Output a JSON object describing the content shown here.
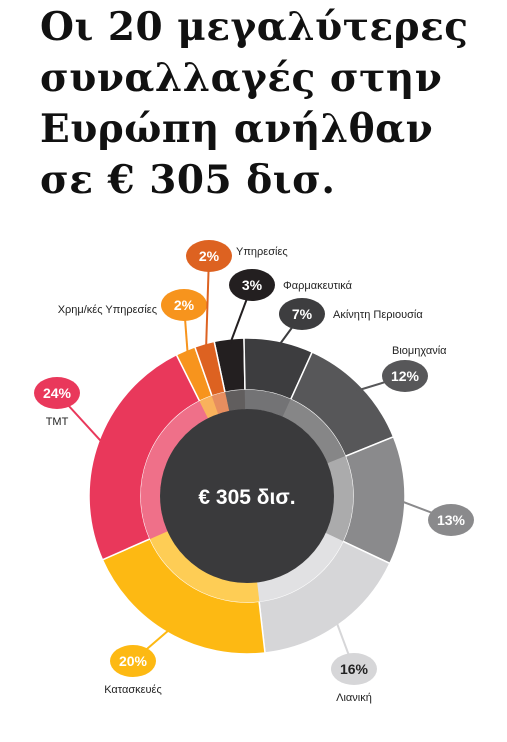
{
  "title_lines": [
    "Οι 20 μεγαλύτερες",
    "συναλλαγές στην",
    "Ευρώπη ανήλθαν",
    "σε € 305 δισ."
  ],
  "chart_data": {
    "type": "pie",
    "center_label": "€ 305 δισ.",
    "unit": "%",
    "categories": [
      "Φαρμακευτικά",
      "Ακίνητη Περιουσία",
      "Βιομηχανία",
      "",
      "Λιανική",
      "Κατασκευές",
      "TMT",
      "Χρημ/κές Υπηρεσίες",
      "Υπηρεσίες"
    ],
    "values": [
      3,
      7,
      12,
      13,
      16,
      20,
      24,
      2,
      2
    ],
    "value_labels": [
      "3%",
      "7%",
      "12%",
      "13%",
      "16%",
      "20%",
      "24%",
      "2%",
      "2%"
    ],
    "colors": [
      "#231f20",
      "#3d3d3f",
      "#575759",
      "#8a8a8c",
      "#d6d6d8",
      "#fdb913",
      "#e9385b",
      "#f7941d",
      "#dd6221"
    ],
    "legend": "none"
  }
}
